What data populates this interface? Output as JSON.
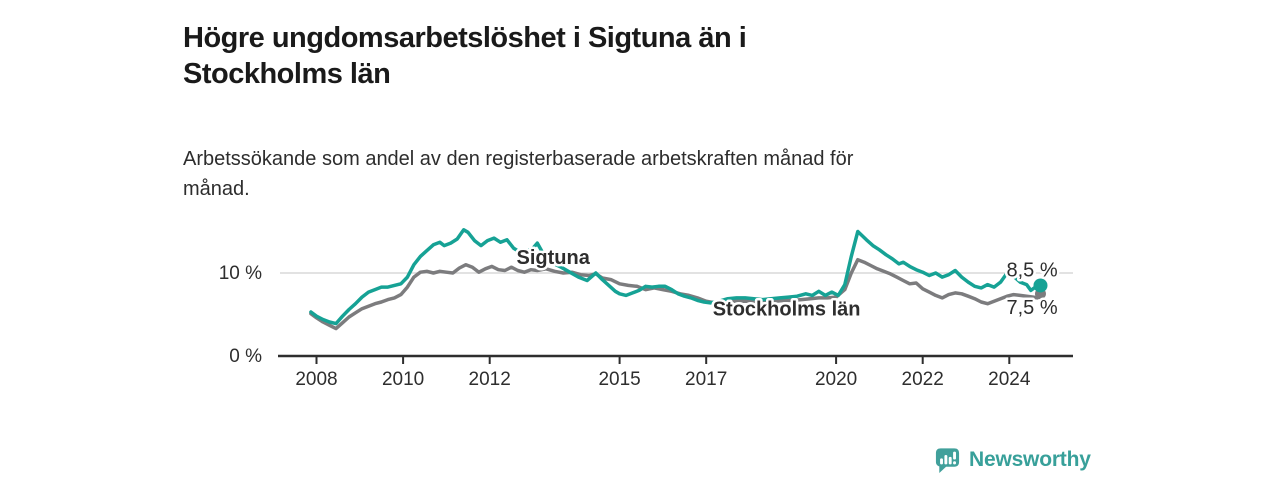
{
  "header": {
    "title": "Högre ungdomsarbetslöshet i Sigtuna än i Stockholms län",
    "subtitle": "Arbetssökande som andel av den registerbaserade arbetskraften månad för månad."
  },
  "branding": {
    "name": "Newsworthy",
    "logo_icon": "newsworthy-bar-chart-bubble-icon",
    "color": "#38a09a"
  },
  "colors": {
    "sigtuna_line": "#16a295",
    "stockholm_line": "#7c7c7e",
    "axis": "#2e2e2e",
    "gridline": "#d8d8d8",
    "title_text": "#1a1a1a",
    "body_text": "#2d2d2d",
    "value_label_text": "#1a1a1a"
  },
  "chart_data": {
    "type": "line",
    "grid": "horizontal-only",
    "legend": "inline-labels",
    "xlim": [
      2007.8,
      2025.5
    ],
    "ylim": [
      0,
      17
    ],
    "x_tick_values": [
      2008,
      2010,
      2012,
      2015,
      2017,
      2020,
      2022,
      2024
    ],
    "x_tick_labels": [
      "2008",
      "2010",
      "2012",
      "2015",
      "2017",
      "2020",
      "2022",
      "2024"
    ],
    "y_gridlines": [
      10
    ],
    "y_axis_labels": [
      {
        "value": 10,
        "label": "10 %"
      },
      {
        "value": 0,
        "label": "0 %"
      }
    ],
    "series": [
      {
        "name": "Stockholms län",
        "color": "#7c7c7e",
        "end_label": "7,5 %",
        "end_value": 7.5,
        "points": [
          [
            2007.87,
            5.1
          ],
          [
            2008.0,
            4.6
          ],
          [
            2008.15,
            4.1
          ],
          [
            2008.3,
            3.7
          ],
          [
            2008.45,
            3.3
          ],
          [
            2008.6,
            4.0
          ],
          [
            2008.75,
            4.7
          ],
          [
            2008.9,
            5.2
          ],
          [
            2009.05,
            5.7
          ],
          [
            2009.2,
            6.0
          ],
          [
            2009.35,
            6.3
          ],
          [
            2009.5,
            6.5
          ],
          [
            2009.65,
            6.8
          ],
          [
            2009.8,
            7.0
          ],
          [
            2009.95,
            7.4
          ],
          [
            2010.1,
            8.3
          ],
          [
            2010.25,
            9.5
          ],
          [
            2010.4,
            10.1
          ],
          [
            2010.55,
            10.2
          ],
          [
            2010.7,
            10.0
          ],
          [
            2010.85,
            10.2
          ],
          [
            2011.0,
            10.1
          ],
          [
            2011.15,
            10.0
          ],
          [
            2011.3,
            10.6
          ],
          [
            2011.45,
            11.0
          ],
          [
            2011.6,
            10.7
          ],
          [
            2011.75,
            10.1
          ],
          [
            2011.9,
            10.5
          ],
          [
            2012.05,
            10.8
          ],
          [
            2012.2,
            10.4
          ],
          [
            2012.35,
            10.3
          ],
          [
            2012.5,
            10.7
          ],
          [
            2012.65,
            10.3
          ],
          [
            2012.8,
            10.1
          ],
          [
            2012.95,
            10.4
          ],
          [
            2013.1,
            10.3
          ],
          [
            2013.3,
            10.5
          ],
          [
            2013.5,
            10.2
          ],
          [
            2013.7,
            10.0
          ],
          [
            2013.9,
            10.1
          ],
          [
            2014.1,
            9.8
          ],
          [
            2014.3,
            9.7
          ],
          [
            2014.45,
            9.9
          ],
          [
            2014.6,
            9.4
          ],
          [
            2014.8,
            9.2
          ],
          [
            2015.0,
            8.7
          ],
          [
            2015.2,
            8.5
          ],
          [
            2015.4,
            8.4
          ],
          [
            2015.6,
            8.0
          ],
          [
            2015.8,
            8.2
          ],
          [
            2016.0,
            8.0
          ],
          [
            2016.2,
            7.8
          ],
          [
            2016.4,
            7.5
          ],
          [
            2016.6,
            7.3
          ],
          [
            2016.8,
            7.0
          ],
          [
            2017.0,
            6.6
          ],
          [
            2017.2,
            6.4
          ],
          [
            2017.4,
            6.5
          ],
          [
            2017.6,
            6.6
          ],
          [
            2017.8,
            6.6
          ],
          [
            2018.0,
            6.6
          ],
          [
            2018.2,
            6.5
          ],
          [
            2018.4,
            6.5
          ],
          [
            2018.6,
            6.6
          ],
          [
            2018.8,
            6.7
          ],
          [
            2019.0,
            6.7
          ],
          [
            2019.2,
            6.8
          ],
          [
            2019.4,
            6.9
          ],
          [
            2019.6,
            7.0
          ],
          [
            2019.8,
            7.0
          ],
          [
            2020.0,
            7.1
          ],
          [
            2020.2,
            8.0
          ],
          [
            2020.35,
            10.0
          ],
          [
            2020.5,
            11.6
          ],
          [
            2020.65,
            11.3
          ],
          [
            2020.8,
            10.9
          ],
          [
            2020.95,
            10.5
          ],
          [
            2021.1,
            10.2
          ],
          [
            2021.25,
            9.9
          ],
          [
            2021.4,
            9.5
          ],
          [
            2021.55,
            9.1
          ],
          [
            2021.7,
            8.7
          ],
          [
            2021.85,
            8.8
          ],
          [
            2022.0,
            8.1
          ],
          [
            2022.15,
            7.7
          ],
          [
            2022.3,
            7.3
          ],
          [
            2022.45,
            7.0
          ],
          [
            2022.6,
            7.4
          ],
          [
            2022.75,
            7.6
          ],
          [
            2022.9,
            7.5
          ],
          [
            2023.05,
            7.2
          ],
          [
            2023.2,
            6.9
          ],
          [
            2023.35,
            6.5
          ],
          [
            2023.5,
            6.3
          ],
          [
            2023.65,
            6.6
          ],
          [
            2023.8,
            6.9
          ],
          [
            2023.95,
            7.2
          ],
          [
            2024.1,
            7.4
          ],
          [
            2024.25,
            7.3
          ],
          [
            2024.4,
            7.2
          ],
          [
            2024.55,
            7.1
          ],
          [
            2024.65,
            7.0
          ],
          [
            2024.72,
            7.5
          ]
        ]
      },
      {
        "name": "Sigtuna",
        "color": "#16a295",
        "end_label": "8,5 %",
        "end_value": 8.5,
        "points": [
          [
            2007.87,
            5.3
          ],
          [
            2008.0,
            4.8
          ],
          [
            2008.15,
            4.4
          ],
          [
            2008.3,
            4.1
          ],
          [
            2008.45,
            3.9
          ],
          [
            2008.6,
            4.8
          ],
          [
            2008.75,
            5.6
          ],
          [
            2008.9,
            6.3
          ],
          [
            2009.05,
            7.1
          ],
          [
            2009.2,
            7.7
          ],
          [
            2009.35,
            8.0
          ],
          [
            2009.5,
            8.3
          ],
          [
            2009.65,
            8.3
          ],
          [
            2009.8,
            8.5
          ],
          [
            2009.95,
            8.7
          ],
          [
            2010.1,
            9.5
          ],
          [
            2010.25,
            11.0
          ],
          [
            2010.4,
            12.0
          ],
          [
            2010.55,
            12.7
          ],
          [
            2010.7,
            13.4
          ],
          [
            2010.85,
            13.7
          ],
          [
            2010.95,
            13.3
          ],
          [
            2011.1,
            13.6
          ],
          [
            2011.25,
            14.1
          ],
          [
            2011.4,
            15.2
          ],
          [
            2011.5,
            14.9
          ],
          [
            2011.65,
            13.9
          ],
          [
            2011.8,
            13.3
          ],
          [
            2011.95,
            13.9
          ],
          [
            2012.1,
            14.2
          ],
          [
            2012.25,
            13.7
          ],
          [
            2012.4,
            14.0
          ],
          [
            2012.55,
            13.0
          ],
          [
            2012.7,
            12.5
          ],
          [
            2012.85,
            12.6
          ],
          [
            2013.0,
            13.0
          ],
          [
            2013.1,
            13.6
          ],
          [
            2013.25,
            12.2
          ],
          [
            2013.45,
            11.2
          ],
          [
            2013.65,
            10.7
          ],
          [
            2013.85,
            10.1
          ],
          [
            2014.05,
            9.5
          ],
          [
            2014.25,
            9.1
          ],
          [
            2014.45,
            10.0
          ],
          [
            2014.6,
            9.2
          ],
          [
            2014.75,
            8.5
          ],
          [
            2014.9,
            7.8
          ],
          [
            2015.0,
            7.5
          ],
          [
            2015.15,
            7.3
          ],
          [
            2015.3,
            7.6
          ],
          [
            2015.45,
            7.9
          ],
          [
            2015.6,
            8.4
          ],
          [
            2015.75,
            8.3
          ],
          [
            2015.9,
            8.4
          ],
          [
            2016.05,
            8.4
          ],
          [
            2016.2,
            8.0
          ],
          [
            2016.35,
            7.5
          ],
          [
            2016.5,
            7.2
          ],
          [
            2016.65,
            7.0
          ],
          [
            2016.8,
            6.7
          ],
          [
            2016.95,
            6.5
          ],
          [
            2017.1,
            6.4
          ],
          [
            2017.3,
            6.6
          ],
          [
            2017.5,
            6.9
          ],
          [
            2017.7,
            7.0
          ],
          [
            2017.9,
            7.0
          ],
          [
            2018.1,
            6.9
          ],
          [
            2018.3,
            6.8
          ],
          [
            2018.5,
            6.9
          ],
          [
            2018.7,
            7.0
          ],
          [
            2018.9,
            7.1
          ],
          [
            2019.1,
            7.2
          ],
          [
            2019.3,
            7.5
          ],
          [
            2019.45,
            7.3
          ],
          [
            2019.6,
            7.8
          ],
          [
            2019.75,
            7.3
          ],
          [
            2019.9,
            7.7
          ],
          [
            2020.05,
            7.3
          ],
          [
            2020.2,
            8.6
          ],
          [
            2020.35,
            12.0
          ],
          [
            2020.5,
            15.0
          ],
          [
            2020.6,
            14.5
          ],
          [
            2020.7,
            14.0
          ],
          [
            2020.85,
            13.3
          ],
          [
            2021.0,
            12.8
          ],
          [
            2021.15,
            12.2
          ],
          [
            2021.3,
            11.7
          ],
          [
            2021.45,
            11.1
          ],
          [
            2021.55,
            11.3
          ],
          [
            2021.7,
            10.8
          ],
          [
            2021.85,
            10.4
          ],
          [
            2022.0,
            10.1
          ],
          [
            2022.15,
            9.7
          ],
          [
            2022.3,
            10.0
          ],
          [
            2022.45,
            9.5
          ],
          [
            2022.6,
            9.8
          ],
          [
            2022.75,
            10.3
          ],
          [
            2022.9,
            9.5
          ],
          [
            2023.05,
            8.9
          ],
          [
            2023.2,
            8.4
          ],
          [
            2023.35,
            8.2
          ],
          [
            2023.5,
            8.6
          ],
          [
            2023.65,
            8.3
          ],
          [
            2023.8,
            8.9
          ],
          [
            2023.95,
            10.0
          ],
          [
            2024.1,
            9.6
          ],
          [
            2024.25,
            8.9
          ],
          [
            2024.4,
            8.6
          ],
          [
            2024.5,
            7.9
          ],
          [
            2024.6,
            8.3
          ],
          [
            2024.72,
            8.5
          ]
        ]
      }
    ],
    "annotations": [
      {
        "text": "Sigtuna",
        "x": 2012.62,
        "y": 11.1,
        "color": "#16a295",
        "bold": true
      },
      {
        "text": "Stockholms län",
        "x": 2017.15,
        "y": 4.9,
        "color": "#7c7c7e",
        "bold": true
      }
    ]
  }
}
